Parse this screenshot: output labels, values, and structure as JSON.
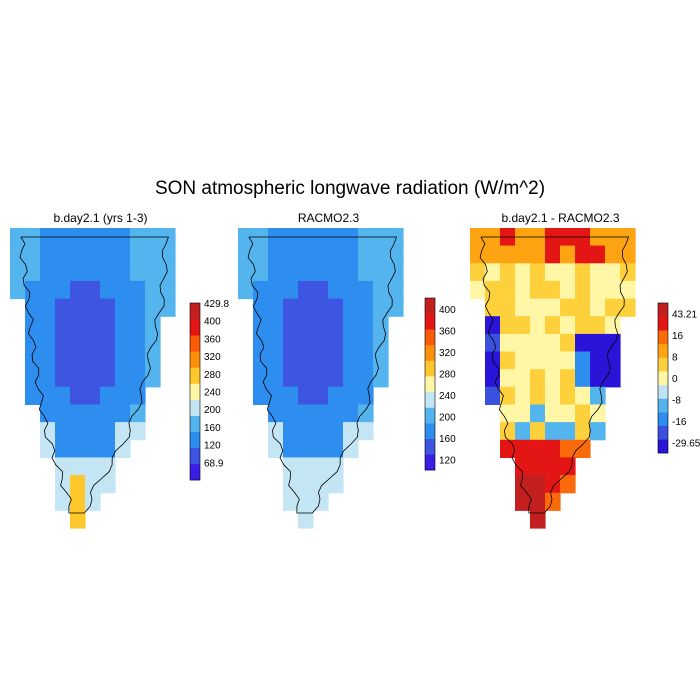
{
  "figure": {
    "title": "SON atmospheric longwave radiation (W/m^2)"
  },
  "chart_data": [
    {
      "type": "heatmap",
      "title": "b.day2.1 (yrs 1-3)",
      "colorbar": {
        "colors": [
          "#3a1ee6",
          "#3d55e0",
          "#2e8ef0",
          "#53b4ee",
          "#c4e6f4",
          "#fff6a6",
          "#fec82c",
          "#fe8f0a",
          "#fb5a09",
          "#e41515",
          "#c41f1f"
        ],
        "tick_labels": [
          "68.9",
          "120",
          "160",
          "200",
          "240",
          "280",
          "320",
          "360",
          "400",
          "429.8"
        ],
        "tick_values": [
          68.9,
          120,
          160,
          200,
          240,
          280,
          320,
          360,
          400,
          429.8
        ]
      },
      "grid_rows": [
        "HHHHHHHHHHHHHHHHHHHHHHHHHHHHHHHHHHHHHHHHHHHHHHHHHHHHHHHHHHHHHHHHHHHHHHHHH",
        "HHHHHHHHHHHHHHHHHHHHHHHHHHHHHHHHHHHHHHHHHHHHHHHHHHHHHHHHHHHHHHHHHHHHHHHHH"
      ],
      "note": ""
    },
    {
      "type": "heatmap",
      "title": "RACMO2.3",
      "colorbar": {
        "colors": [
          "#3a1ee6",
          "#3d55e0",
          "#2e8ef0",
          "#53b4ee",
          "#c4e6f4",
          "#fff6a6",
          "#fec82c",
          "#fe8f0a",
          "#fb5a09",
          "#e41515",
          "#c41f1f"
        ],
        "tick_labels": [
          "120",
          "160",
          "200",
          "240",
          "280",
          "320",
          "360",
          "400"
        ],
        "tick_values": [
          120,
          160,
          200,
          240,
          280,
          320,
          360,
          400
        ]
      }
    },
    {
      "type": "heatmap",
      "title": "b.day2.1 - RACMO2.3",
      "colorbar": {
        "colors": [
          "#2a14d8",
          "#3a50df",
          "#2e8ef0",
          "#53b4ee",
          "#bfe3f3",
          "#fff6a6",
          "#fed13c",
          "#fea412",
          "#fb6a0a",
          "#e41515",
          "#c41f1f"
        ],
        "tick_labels": [
          "-29.65",
          "-16",
          "-8",
          "0",
          "8",
          "16",
          "43.21"
        ],
        "tick_values": [
          -29.65,
          -16,
          -8,
          0,
          8,
          16,
          43.21
        ]
      }
    }
  ]
}
